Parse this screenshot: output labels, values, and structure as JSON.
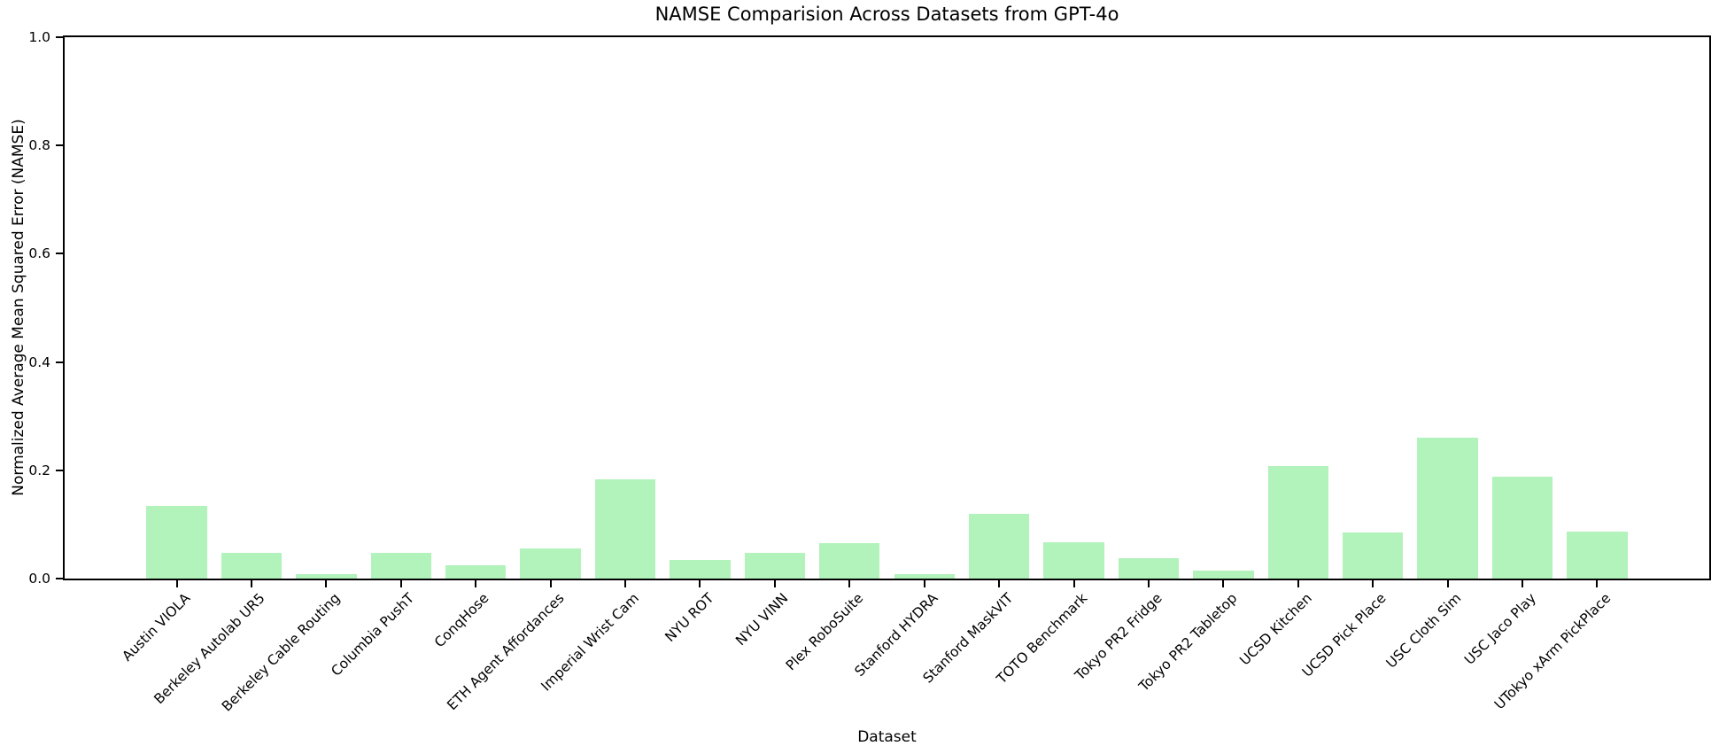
{
  "title": "NAMSE Comparision Across Datasets from GPT-4o",
  "chart_data": {
    "type": "bar",
    "title": "NAMSE Comparision Across Datasets from GPT-4o",
    "xlabel": "Dataset",
    "ylabel": "Normalized Average Mean Squared Error (NAMSE)",
    "ylim": [
      0.0,
      1.0
    ],
    "yticks": [
      0.0,
      0.2,
      0.4,
      0.6,
      0.8,
      1.0
    ],
    "grid": false,
    "legend_position": "none",
    "bar_color": "#b2f2bb",
    "axis_color": "#000000",
    "categories": [
      "Austin VIOLA",
      "Berkeley Autolab UR5",
      "Berkeley Cable Routing",
      "Columbia PushT",
      "ConqHose",
      "ETH Agent Affordances",
      "Imperial Wrist Cam",
      "NYU ROT",
      "NYU VINN",
      "Plex RoboSuite",
      "Stanford HYDRA",
      "Stanford MaskVIT",
      "TOTO Benchmark",
      "Tokyo PR2 Fridge",
      "Tokyo PR2 Tabletop",
      "UCSD Kitchen",
      "UCSD Pick Place",
      "USC Cloth Sim",
      "USC Jaco Play",
      "UTokyo xArm PickPlace"
    ],
    "values": [
      0.134,
      0.048,
      0.009,
      0.047,
      0.024,
      0.056,
      0.184,
      0.034,
      0.047,
      0.066,
      0.009,
      0.12,
      0.067,
      0.037,
      0.014,
      0.208,
      0.085,
      0.26,
      0.189,
      0.087
    ]
  }
}
